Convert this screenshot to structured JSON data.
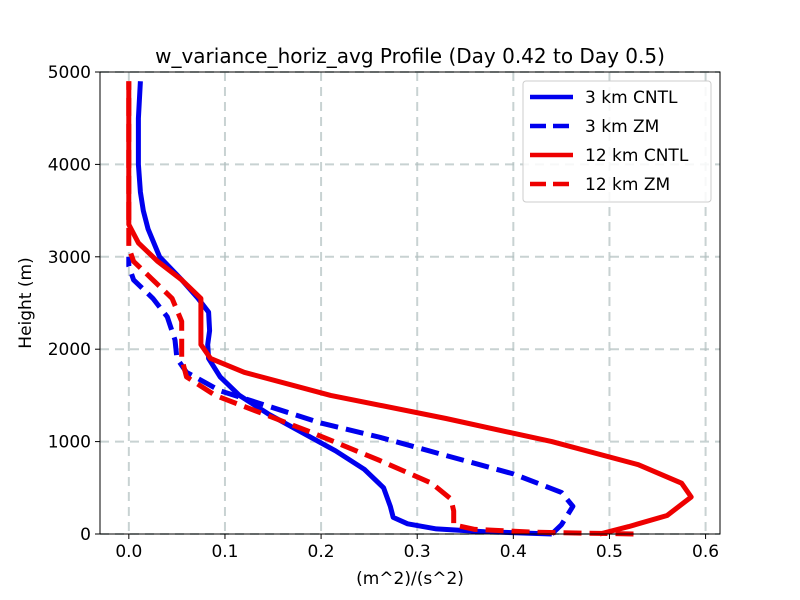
{
  "chart_data": {
    "type": "line",
    "title": "w_variance_horiz_avg Profile (Day 0.42 to Day 0.5)",
    "xlabel": "(m^2)/(s^2)",
    "ylabel": "Height (m)",
    "xlim": [
      -0.03,
      0.615
    ],
    "ylim": [
      0,
      5000
    ],
    "xticks": [
      0.0,
      0.1,
      0.2,
      0.3,
      0.4,
      0.5,
      0.6
    ],
    "xtick_labels": [
      "0.0",
      "0.1",
      "0.2",
      "0.3",
      "0.4",
      "0.5",
      "0.6"
    ],
    "yticks": [
      0,
      1000,
      2000,
      3000,
      4000,
      5000
    ],
    "ytick_labels": [
      "0",
      "1000",
      "2000",
      "3000",
      "4000",
      "5000"
    ],
    "grid": true,
    "legend_position": "top-right",
    "series": [
      {
        "name": "3 km CNTL",
        "color": "#0000ee",
        "dash": "solid",
        "points": [
          [
            0.44,
            0
          ],
          [
            0.37,
            25
          ],
          [
            0.32,
            55
          ],
          [
            0.29,
            110
          ],
          [
            0.275,
            180
          ],
          [
            0.272,
            300
          ],
          [
            0.265,
            500
          ],
          [
            0.245,
            700
          ],
          [
            0.215,
            900
          ],
          [
            0.18,
            1100
          ],
          [
            0.145,
            1300
          ],
          [
            0.115,
            1500
          ],
          [
            0.095,
            1700
          ],
          [
            0.083,
            1900
          ],
          [
            0.082,
            2050
          ],
          [
            0.084,
            2200
          ],
          [
            0.083,
            2400
          ],
          [
            0.072,
            2550
          ],
          [
            0.055,
            2750
          ],
          [
            0.032,
            3000
          ],
          [
            0.02,
            3300
          ],
          [
            0.015,
            3500
          ],
          [
            0.012,
            3700
          ],
          [
            0.01,
            4000
          ],
          [
            0.01,
            4500
          ],
          [
            0.012,
            4900
          ]
        ]
      },
      {
        "name": "3 km ZM",
        "color": "#0000ee",
        "dash": "dashed",
        "points": [
          [
            0.44,
            0
          ],
          [
            0.45,
            100
          ],
          [
            0.462,
            300
          ],
          [
            0.45,
            450
          ],
          [
            0.4,
            650
          ],
          [
            0.33,
            850
          ],
          [
            0.26,
            1050
          ],
          [
            0.2,
            1200
          ],
          [
            0.14,
            1400
          ],
          [
            0.095,
            1550
          ],
          [
            0.06,
            1750
          ],
          [
            0.05,
            1900
          ],
          [
            0.048,
            2100
          ],
          [
            0.04,
            2350
          ],
          [
            0.025,
            2550
          ],
          [
            0.005,
            2750
          ],
          [
            0.0,
            2900
          ],
          [
            0.0,
            3000
          ]
        ]
      },
      {
        "name": "12 km CNTL",
        "color": "#ee0000",
        "dash": "solid",
        "points": [
          [
            0.49,
            0
          ],
          [
            0.52,
            80
          ],
          [
            0.56,
            200
          ],
          [
            0.585,
            400
          ],
          [
            0.575,
            550
          ],
          [
            0.53,
            750
          ],
          [
            0.44,
            1000
          ],
          [
            0.33,
            1250
          ],
          [
            0.21,
            1500
          ],
          [
            0.12,
            1750
          ],
          [
            0.085,
            1900
          ],
          [
            0.075,
            2050
          ],
          [
            0.075,
            2200
          ],
          [
            0.075,
            2550
          ],
          [
            0.055,
            2750
          ],
          [
            0.03,
            2950
          ],
          [
            0.01,
            3150
          ],
          [
            0.0,
            3350
          ],
          [
            0.0,
            4900
          ]
        ]
      },
      {
        "name": "12 km ZM",
        "color": "#ee0000",
        "dash": "dashed",
        "points": [
          [
            0.525,
            0
          ],
          [
            0.42,
            20
          ],
          [
            0.36,
            50
          ],
          [
            0.338,
            100
          ],
          [
            0.338,
            250
          ],
          [
            0.335,
            380
          ],
          [
            0.315,
            550
          ],
          [
            0.26,
            800
          ],
          [
            0.19,
            1100
          ],
          [
            0.14,
            1300
          ],
          [
            0.09,
            1500
          ],
          [
            0.06,
            1700
          ],
          [
            0.055,
            1900
          ],
          [
            0.055,
            2100
          ],
          [
            0.055,
            2300
          ],
          [
            0.045,
            2550
          ],
          [
            0.025,
            2750
          ],
          [
            0.005,
            2950
          ],
          [
            0.0,
            3100
          ],
          [
            0.0,
            4900
          ]
        ]
      }
    ]
  }
}
